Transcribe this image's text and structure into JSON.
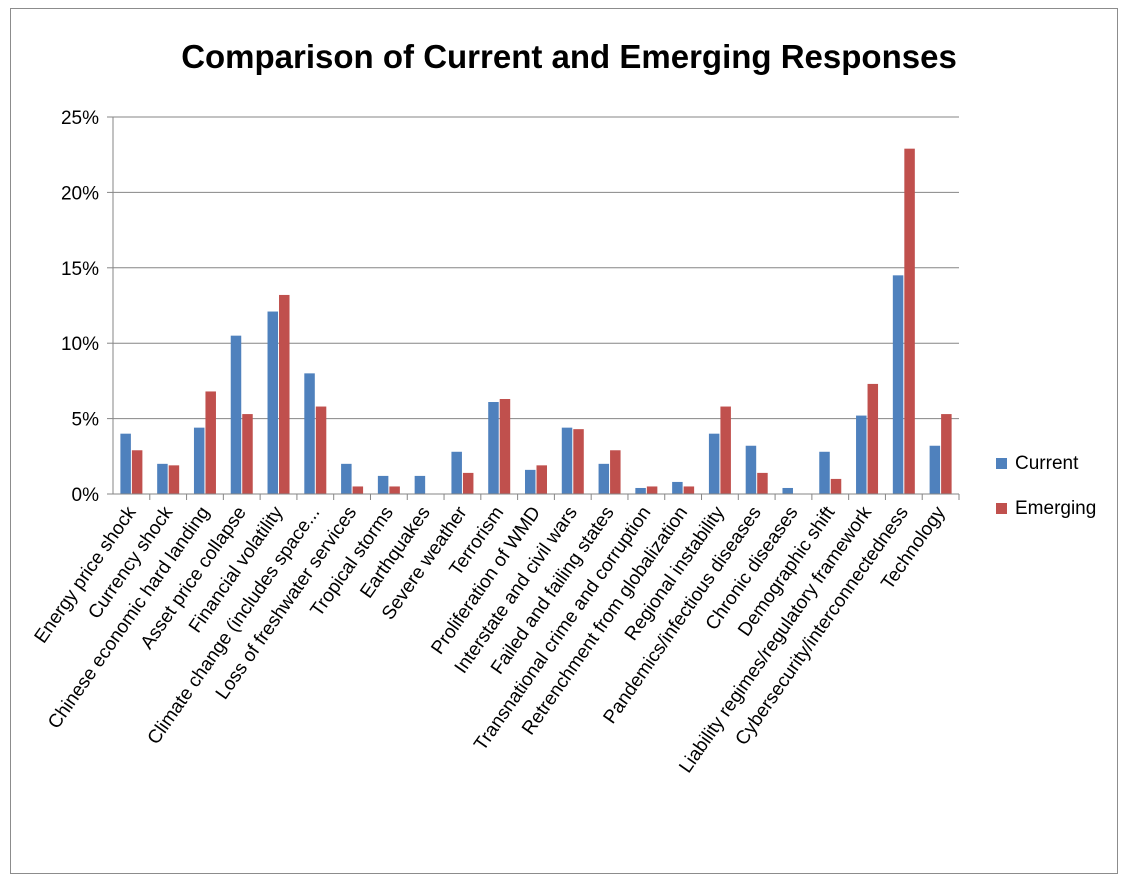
{
  "chart_data": {
    "type": "bar",
    "title": "Comparison of Current and Emerging Responses",
    "xlabel": "",
    "ylabel": "",
    "ylim": [
      0,
      25
    ],
    "y_ticks": [
      "0%",
      "5%",
      "10%",
      "15%",
      "20%",
      "25%"
    ],
    "y_tick_values": [
      0,
      5,
      10,
      15,
      20,
      25
    ],
    "grid": true,
    "legend_position": "right",
    "categories": [
      "Energy price shock",
      "Currency shock",
      "Chinese economic hard landing",
      "Asset price collapse",
      "Financial volatility",
      "Climate change (includes space...",
      "Loss of freshwater services",
      "Tropical storms",
      "Earthquakes",
      "Severe weather",
      "Terrorism",
      "Proliferation of WMD",
      "Interstate and civil wars",
      "Failed and failing states",
      "Transnational crime and corruption",
      "Retrenchment from globalization",
      "Regional instability",
      "Pandemics/infectious diseases",
      "Chronic diseases",
      "Demographic shift",
      "Liability regimes/regulatory framework",
      "Cybersecurity/interconnectedness",
      "Technology"
    ],
    "series": [
      {
        "name": "Current",
        "color": "#4f81bd",
        "values": [
          4.0,
          2.0,
          4.4,
          10.5,
          12.1,
          8.0,
          2.0,
          1.2,
          1.2,
          2.8,
          6.1,
          1.6,
          4.4,
          2.0,
          0.4,
          0.8,
          4.0,
          3.2,
          0.4,
          2.8,
          5.2,
          14.5,
          3.2
        ]
      },
      {
        "name": "Emerging",
        "color": "#c0504d",
        "values": [
          2.9,
          1.9,
          6.8,
          5.3,
          13.2,
          5.8,
          0.5,
          0.5,
          0.0,
          1.4,
          6.3,
          1.9,
          4.3,
          2.9,
          0.5,
          0.5,
          5.8,
          1.4,
          0.0,
          1.0,
          7.3,
          22.9,
          5.3
        ]
      }
    ]
  }
}
